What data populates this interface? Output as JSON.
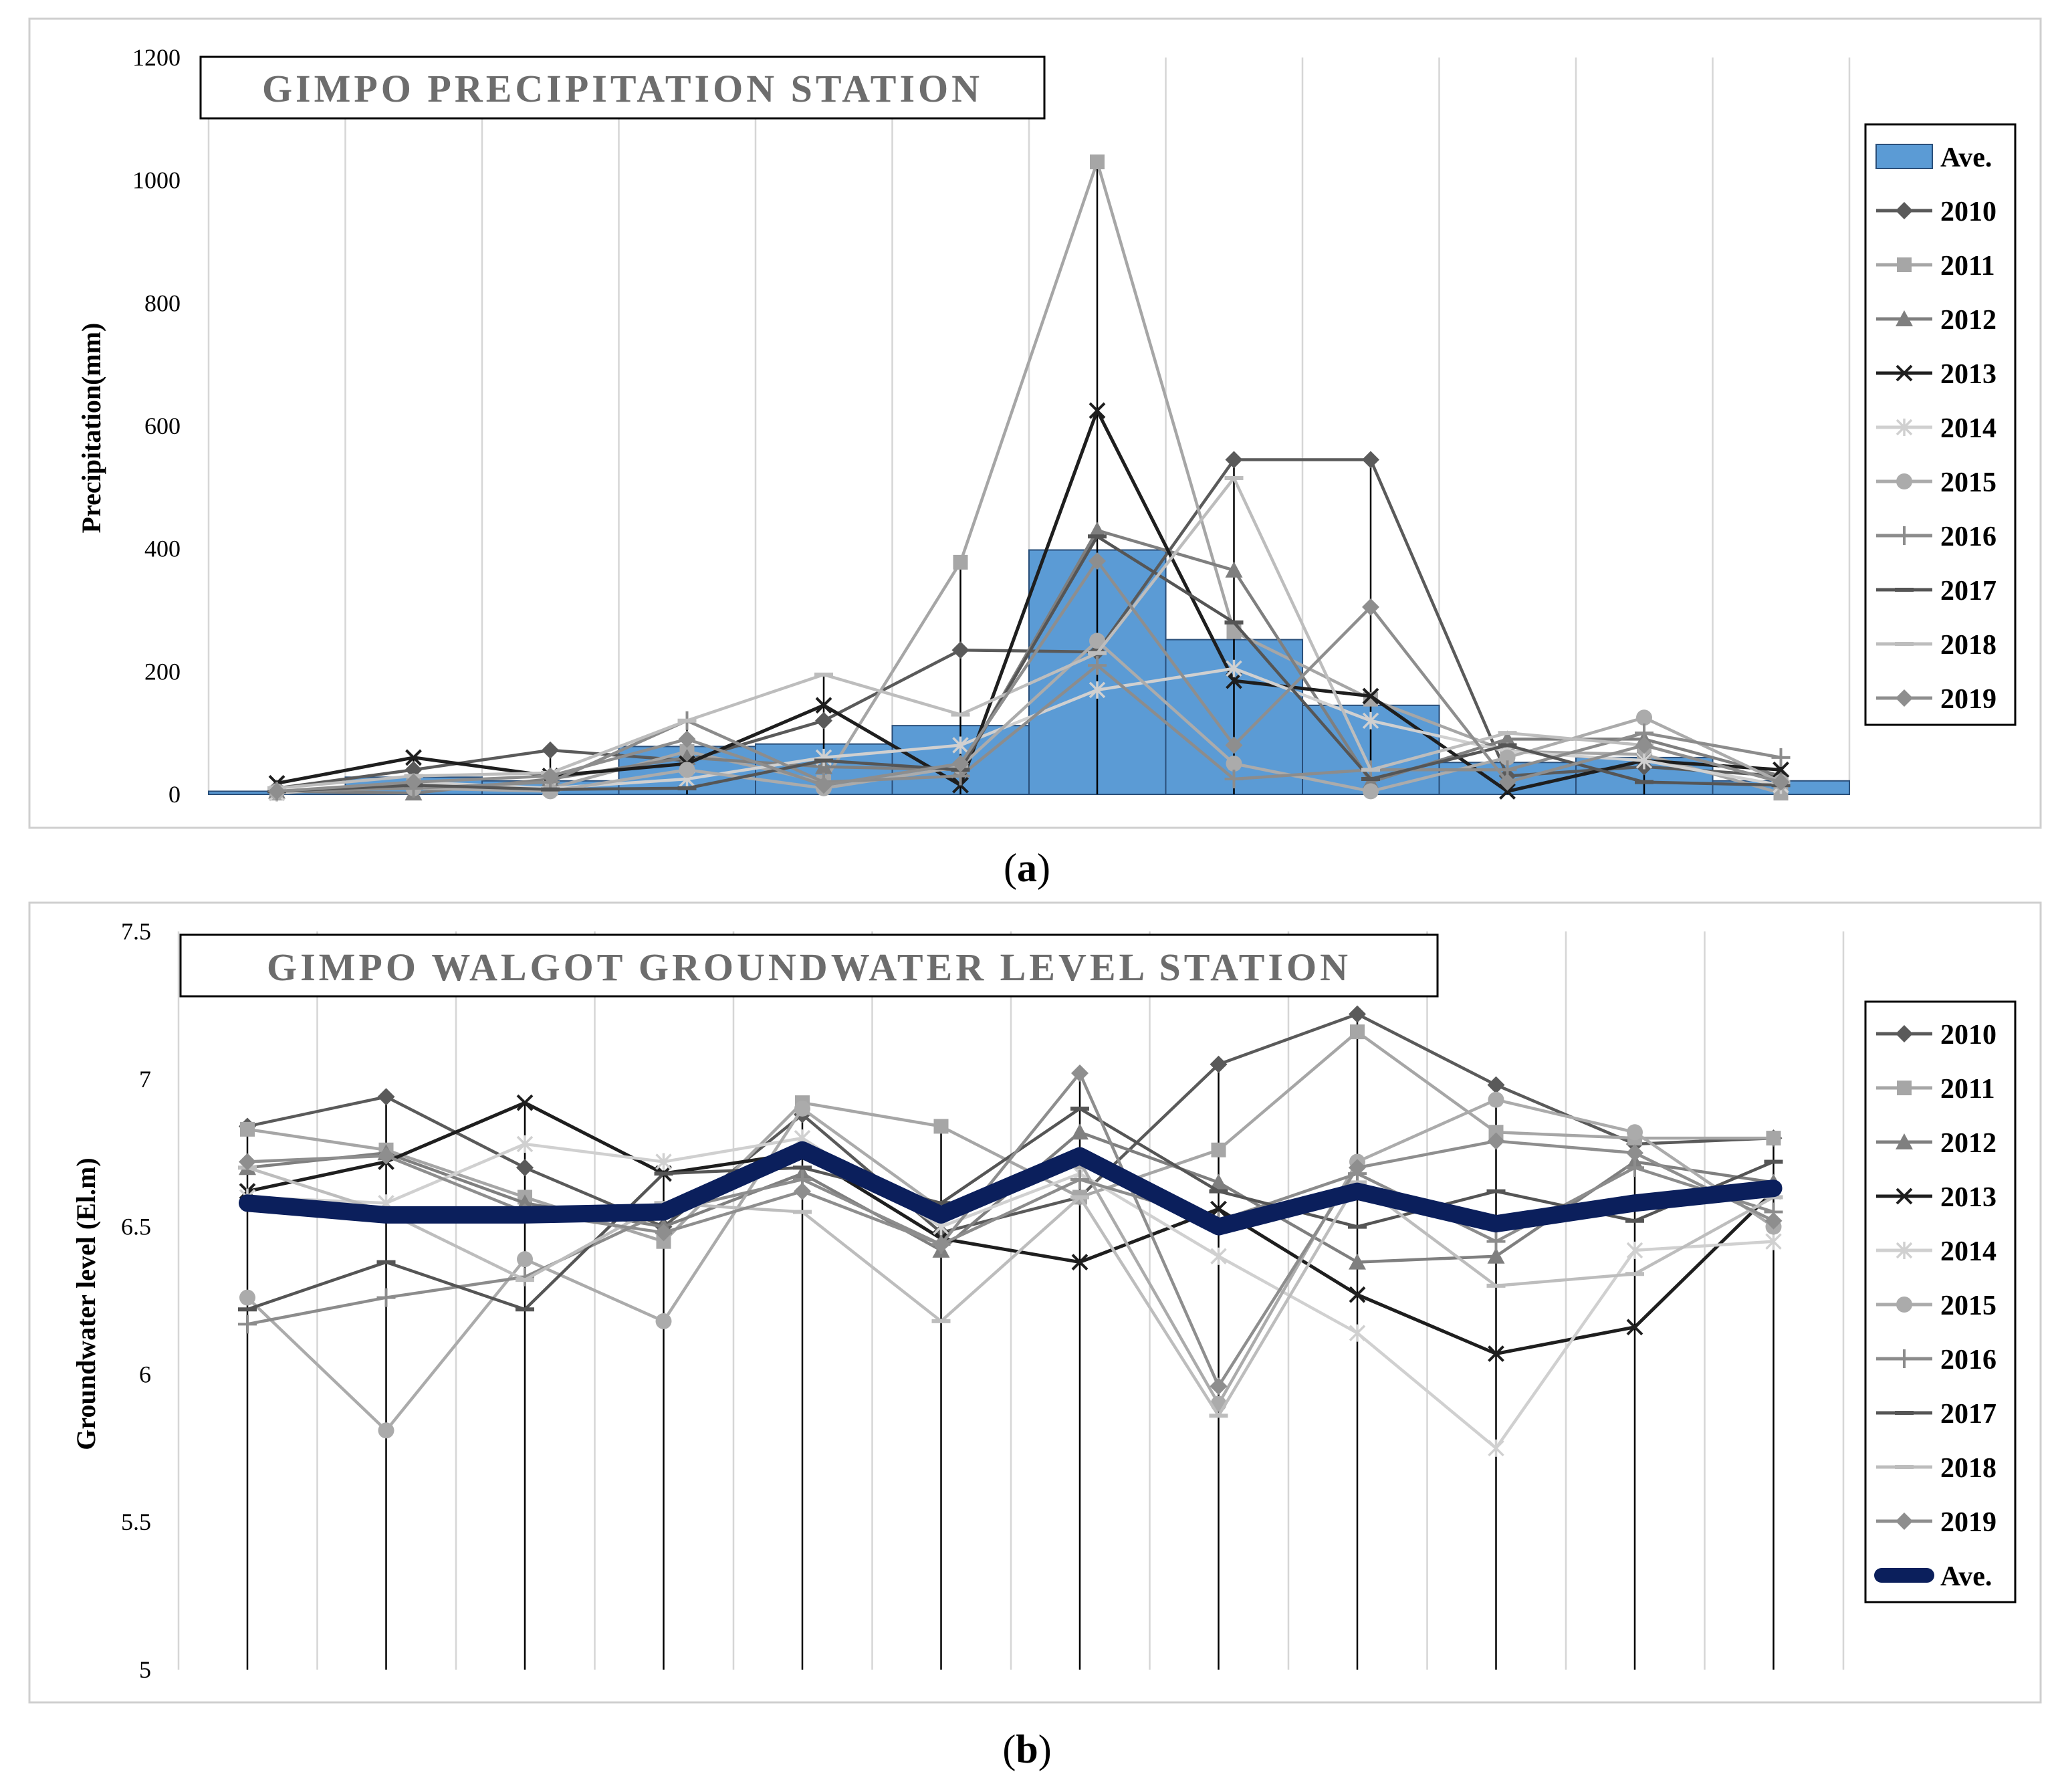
{
  "colors": {
    "bar_fill": "#5b9bd5",
    "avg_line": "#0b1f5c",
    "series": {
      "2010": "#5a5a5a",
      "2011": "#a6a6a6",
      "2012": "#7f7f7f",
      "2013": "#1e1e1e",
      "2014": "#d0d0d0",
      "2015": "#ababab",
      "2016": "#8c8c8c",
      "2017": "#555555",
      "2018": "#bdbdbd",
      "2019": "#8e8e8e"
    },
    "markers": {
      "2010": "diamond",
      "2011": "square",
      "2012": "triangle",
      "2013": "x",
      "2014": "star",
      "2015": "circle",
      "2016": "plus",
      "2017": "dash",
      "2018": "dash",
      "2019": "diamond"
    }
  },
  "chart_data": [
    {
      "id": "precipitation",
      "type": "bar+line",
      "title": "GIMPO PRECIPITATION STATION",
      "caption_letter": "a",
      "ylabel": "Precipitation(mm)",
      "xlabel": "",
      "ylim": [
        0,
        1200
      ],
      "yticks": [
        0,
        200,
        400,
        600,
        800,
        1000,
        1200
      ],
      "grid": true,
      "legend_position": "right",
      "month_count": 12,
      "bar_series": {
        "name": "Ave.",
        "values": [
          5,
          28,
          22,
          78,
          82,
          112,
          398,
          252,
          145,
          52,
          60,
          22
        ]
      },
      "series": [
        {
          "name": "2010",
          "values": [
            10,
            40,
            72,
            55,
            120,
            235,
            232,
            545,
            545,
            30,
            45,
            30
          ]
        },
        {
          "name": "2011",
          "values": [
            2,
            15,
            10,
            70,
            20,
            378,
            1030,
            265,
            155,
            70,
            65,
            2
          ]
        },
        {
          "name": "2012",
          "values": [
            5,
            2,
            25,
            60,
            45,
            40,
            430,
            365,
            20,
            90,
            90,
            30
          ]
        },
        {
          "name": "2013",
          "values": [
            18,
            60,
            30,
            50,
            145,
            15,
            625,
            185,
            160,
            5,
            55,
            40
          ]
        },
        {
          "name": "2014",
          "values": [
            2,
            20,
            10,
            25,
            60,
            80,
            170,
            205,
            120,
            70,
            55,
            15
          ]
        },
        {
          "name": "2015",
          "values": [
            5,
            10,
            5,
            40,
            10,
            45,
            250,
            50,
            5,
            60,
            125,
            20
          ]
        },
        {
          "name": "2016",
          "values": [
            5,
            10,
            20,
            120,
            20,
            30,
            210,
            25,
            40,
            40,
            100,
            60
          ]
        },
        {
          "name": "2017",
          "values": [
            5,
            15,
            8,
            10,
            55,
            40,
            420,
            280,
            25,
            80,
            20,
            15
          ]
        },
        {
          "name": "2018",
          "values": [
            10,
            30,
            35,
            120,
            195,
            130,
            230,
            515,
            40,
            100,
            80,
            20
          ]
        },
        {
          "name": "2019",
          "values": [
            5,
            20,
            30,
            90,
            15,
            50,
            380,
            80,
            305,
            20,
            80,
            20
          ]
        }
      ]
    },
    {
      "id": "groundwater",
      "type": "line",
      "title": "GIMPO WALGOT GROUNDWATER LEVEL STATION",
      "caption_letter": "b",
      "ylabel": "Groundwater level (El.m)",
      "xlabel": "",
      "ylim": [
        5,
        7.5
      ],
      "yticks": [
        5,
        5.5,
        6,
        6.5,
        7,
        7.5
      ],
      "grid": true,
      "legend_position": "right",
      "month_count": 12,
      "series": [
        {
          "name": "2010",
          "values": [
            6.84,
            6.94,
            6.7,
            6.5,
            6.88,
            6.48,
            6.6,
            7.05,
            7.22,
            6.98,
            6.78,
            6.8
          ]
        },
        {
          "name": "2011",
          "values": [
            6.83,
            6.76,
            6.6,
            6.45,
            6.92,
            6.84,
            6.6,
            6.76,
            7.16,
            6.82,
            6.8,
            6.8
          ]
        },
        {
          "name": "2012",
          "values": [
            6.7,
            6.75,
            6.58,
            6.5,
            6.68,
            6.42,
            6.82,
            6.65,
            6.38,
            6.4,
            6.72,
            6.65
          ]
        },
        {
          "name": "2013",
          "values": [
            6.62,
            6.72,
            6.92,
            6.68,
            6.75,
            6.46,
            6.38,
            6.56,
            6.27,
            6.07,
            6.16,
            6.62
          ]
        },
        {
          "name": "2014",
          "values": [
            6.6,
            6.58,
            6.78,
            6.72,
            6.8,
            6.5,
            6.68,
            6.4,
            6.14,
            5.75,
            6.42,
            6.45
          ]
        },
        {
          "name": "2015",
          "values": [
            6.26,
            5.81,
            6.39,
            6.18,
            6.9,
            6.56,
            6.72,
            5.9,
            6.72,
            6.93,
            6.82,
            6.5
          ]
        },
        {
          "name": "2016",
          "values": [
            6.17,
            6.26,
            6.33,
            6.55,
            6.66,
            6.44,
            6.66,
            6.52,
            6.68,
            6.45,
            6.7,
            6.55
          ]
        },
        {
          "name": "2017",
          "values": [
            6.22,
            6.38,
            6.22,
            6.68,
            6.7,
            6.58,
            6.9,
            6.62,
            6.5,
            6.62,
            6.52,
            6.72
          ]
        },
        {
          "name": "2018",
          "values": [
            6.7,
            6.55,
            6.32,
            6.58,
            6.55,
            6.18,
            6.6,
            5.86,
            6.65,
            6.3,
            6.34,
            6.6
          ]
        },
        {
          "name": "2019",
          "values": [
            6.72,
            6.74,
            6.55,
            6.48,
            6.62,
            6.44,
            7.02,
            5.96,
            6.7,
            6.79,
            6.75,
            6.52
          ]
        }
      ],
      "avg_series": {
        "name": "Ave.",
        "values": [
          6.58,
          6.54,
          6.54,
          6.55,
          6.76,
          6.54,
          6.74,
          6.5,
          6.62,
          6.51,
          6.58,
          6.63
        ]
      }
    }
  ]
}
